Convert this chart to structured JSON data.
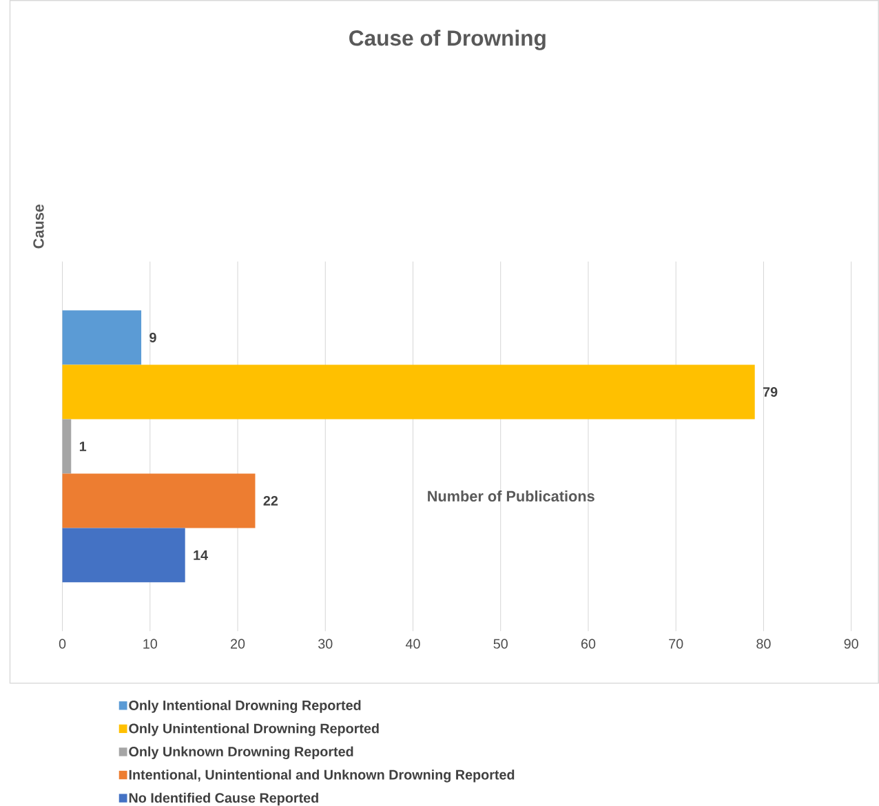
{
  "chart_data": {
    "type": "bar",
    "orientation": "horizontal",
    "title": "Cause of Drowning",
    "xlabel": "Number of Publications",
    "ylabel": "Cause",
    "categories": [
      null
    ],
    "series": [
      {
        "name": "Only Intentional Drowning Reported",
        "color": "#5b9bd5",
        "values": [
          9
        ]
      },
      {
        "name": "Only Unintentional Drowning Reported",
        "color": "#ffc000",
        "values": [
          79
        ]
      },
      {
        "name": "Only Unknown Drowning Reported",
        "color": "#a5a5a5",
        "values": [
          1
        ]
      },
      {
        "name": "Intentional, Unintentional and Unknown Drowning Reported",
        "color": "#ed7d31",
        "values": [
          22
        ]
      },
      {
        "name": "No Identified Cause Reported",
        "color": "#4472c4",
        "values": [
          14
        ]
      }
    ],
    "xlim": [
      0,
      90
    ],
    "xticks": [
      0,
      10,
      20,
      30,
      40,
      50,
      60,
      70,
      80,
      90
    ],
    "grid": "x",
    "legend": "bottom",
    "data_labels": true
  }
}
